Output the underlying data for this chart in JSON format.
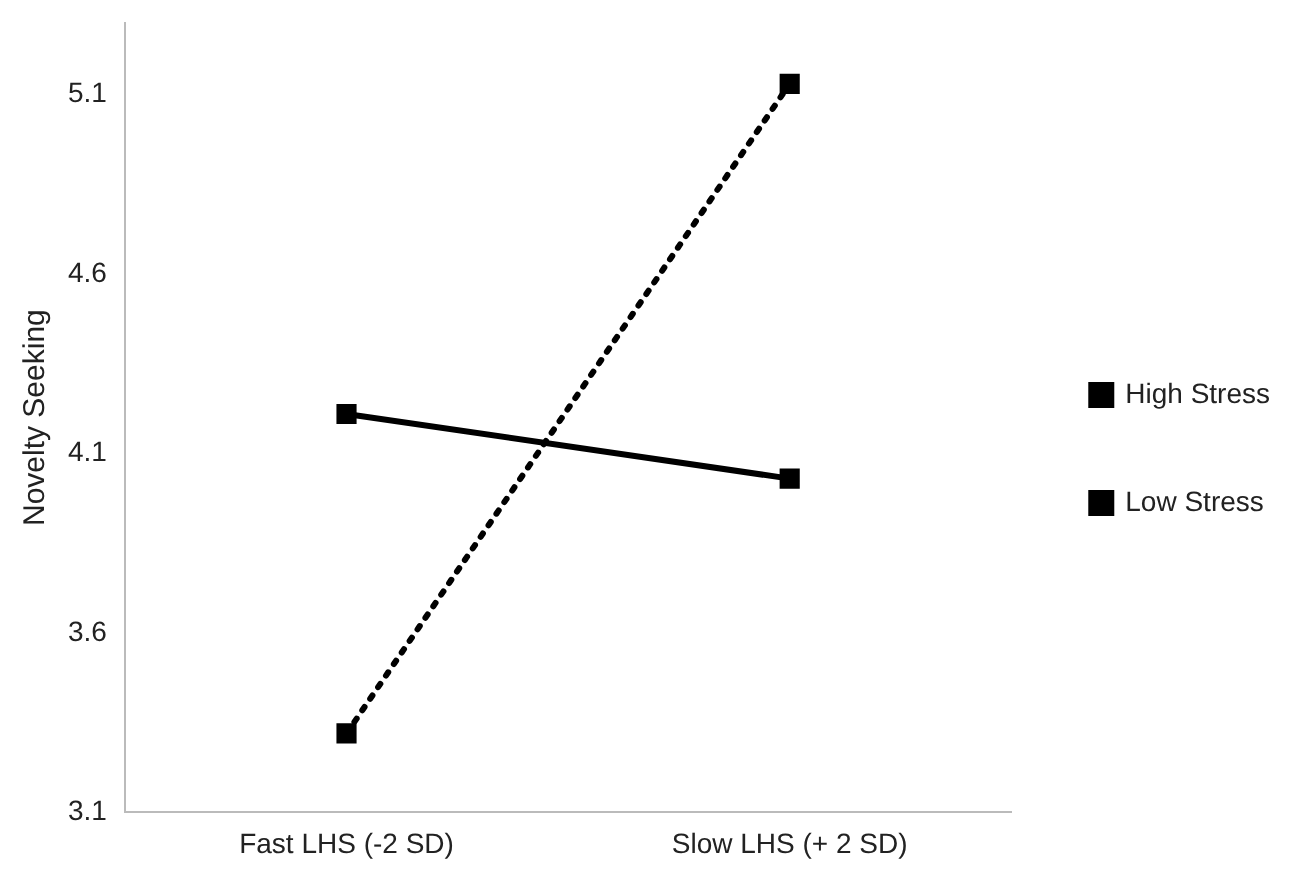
{
  "chart_data": {
    "type": "line",
    "ylabel": "Novelty Seeking",
    "categories": [
      "Fast LHS (-2 SD)",
      "Slow LHS (+ 2 SD)"
    ],
    "series": [
      {
        "name": "High Stress",
        "color": "#000000",
        "values": [
          4.21,
          4.03
        ],
        "line_style": "solid"
      },
      {
        "name": "Low Stress",
        "color": "#000000",
        "values": [
          3.32,
          5.13
        ],
        "line_style": "dotted"
      }
    ],
    "ylim": [
      3.1,
      5.3
    ],
    "yticks": [
      3.1,
      3.6,
      4.1,
      4.6,
      5.1
    ],
    "grid": false,
    "legend": "right",
    "marker": "square"
  }
}
